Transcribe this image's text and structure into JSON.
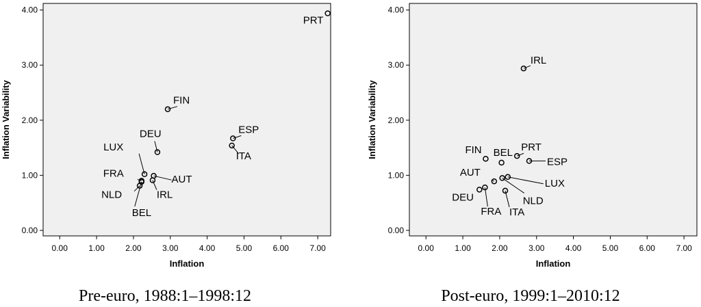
{
  "chart_data": [
    {
      "type": "scatter",
      "caption": "Pre-euro, 1988:1–1998:12",
      "xlabel": "Inflation",
      "ylabel": "Inflation Variability",
      "xlim": [
        -0.45,
        7.35
      ],
      "ylim": [
        -0.1,
        4.12
      ],
      "xticks": [
        "0.00",
        "1.00",
        "2.00",
        "3.00",
        "4.00",
        "5.00",
        "6.00",
        "7.00"
      ],
      "yticks": [
        "0.00",
        "1.00",
        "2.00",
        "3.00",
        "4.00"
      ],
      "grid": false,
      "points": [
        {
          "label": "PRT",
          "x": 7.27,
          "y": 3.94
        },
        {
          "label": "FIN",
          "x": 2.93,
          "y": 2.2
        },
        {
          "label": "ESP",
          "x": 4.7,
          "y": 1.67
        },
        {
          "label": "ITA",
          "x": 4.67,
          "y": 1.54
        },
        {
          "label": "DEU",
          "x": 2.65,
          "y": 1.42
        },
        {
          "label": "LUX",
          "x": 2.3,
          "y": 1.02
        },
        {
          "label": "FRA",
          "x": 2.22,
          "y": 0.9
        },
        {
          "label": "AUT",
          "x": 2.55,
          "y": 0.99
        },
        {
          "label": "IRL",
          "x": 2.52,
          "y": 0.91
        },
        {
          "label": "NLD",
          "x": 2.17,
          "y": 0.81
        },
        {
          "label": "BEL",
          "x": 2.22,
          "y": 0.88
        }
      ]
    },
    {
      "type": "scatter",
      "caption": "Post-euro, 1999:1–2010:12",
      "xlabel": "Inflation",
      "ylabel": "Inflation Variability",
      "xlim": [
        -0.45,
        7.35
      ],
      "ylim": [
        -0.1,
        4.12
      ],
      "xticks": [
        "0.00",
        "1.00",
        "2.00",
        "3.00",
        "4.00",
        "5.00",
        "6.00",
        "7.00"
      ],
      "yticks": [
        "0.00",
        "1.00",
        "2.00",
        "3.00",
        "4.00"
      ],
      "grid": false,
      "points": [
        {
          "label": "IRL",
          "x": 2.65,
          "y": 2.94
        },
        {
          "label": "FIN",
          "x": 1.62,
          "y": 1.3
        },
        {
          "label": "BEL",
          "x": 2.05,
          "y": 1.23
        },
        {
          "label": "PRT",
          "x": 2.47,
          "y": 1.35
        },
        {
          "label": "ESP",
          "x": 2.8,
          "y": 1.26
        },
        {
          "label": "AUT",
          "x": 1.85,
          "y": 0.89
        },
        {
          "label": "LUX",
          "x": 2.22,
          "y": 0.97
        },
        {
          "label": "NLD",
          "x": 2.07,
          "y": 0.95
        },
        {
          "label": "DEU",
          "x": 1.45,
          "y": 0.74
        },
        {
          "label": "FRA",
          "x": 1.6,
          "y": 0.78
        },
        {
          "label": "ITA",
          "x": 2.15,
          "y": 0.72
        }
      ]
    }
  ]
}
